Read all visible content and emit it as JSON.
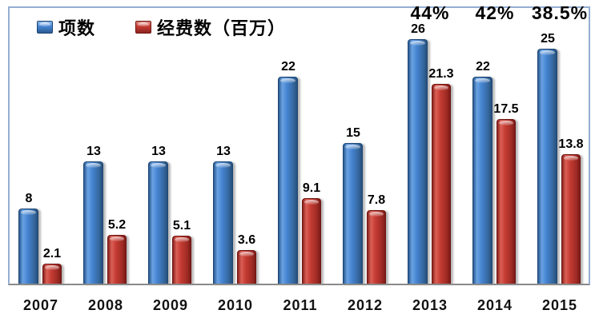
{
  "chart_data": {
    "type": "bar",
    "title": "",
    "xlabel": "",
    "ylabel": "",
    "categories": [
      "2007",
      "2008",
      "2009",
      "2010",
      "2011",
      "2012",
      "2013",
      "2014",
      "2015"
    ],
    "series": [
      {
        "name": "项数",
        "color": "#4584D2",
        "values": [
          8,
          13,
          13,
          13,
          22,
          15,
          26,
          22,
          25
        ]
      },
      {
        "name": "经费数（百万）",
        "color": "#C43B33",
        "values": [
          2.1,
          5.2,
          5.1,
          3.6,
          9.1,
          7.8,
          21.3,
          17.5,
          13.8
        ]
      }
    ],
    "annotations": [
      {
        "category": "2013",
        "label": "44%"
      },
      {
        "category": "2014",
        "label": "42%"
      },
      {
        "category": "2015",
        "label": "38.5%"
      }
    ],
    "legend_position": "top-left",
    "grid": false,
    "y_axis_visible": false,
    "ylim": [
      0,
      29.7
    ]
  },
  "colors": {
    "series_projects": "#4584D2",
    "series_funding": "#C43B33",
    "frame_border": "#94AED2",
    "axis_line": "#8A8A8A",
    "label_text": "#000000",
    "background": "#FFFFFF"
  }
}
